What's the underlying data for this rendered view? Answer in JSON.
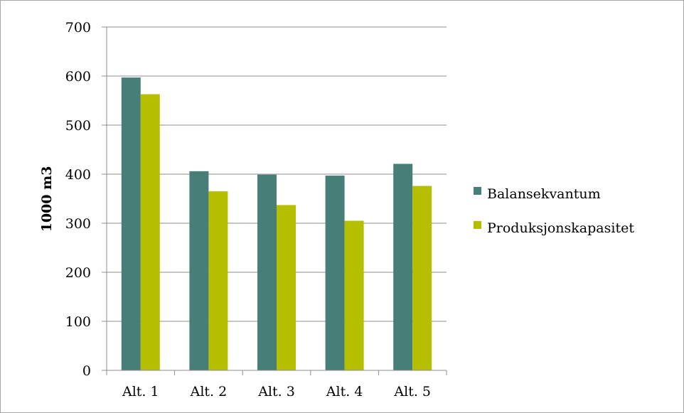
{
  "chart_data": {
    "type": "bar",
    "title": "",
    "xlabel": "",
    "ylabel": "1000 m3",
    "ylim": [
      0,
      700
    ],
    "yticks": [
      0,
      100,
      200,
      300,
      400,
      500,
      600,
      700
    ],
    "grid": true,
    "legend_position": "right",
    "categories": [
      "Alt. 1",
      "Alt. 2",
      "Alt. 3",
      "Alt. 4",
      "Alt. 5"
    ],
    "series": [
      {
        "name": "Balansekvantum",
        "color": "#477e78",
        "values": [
          597,
          406,
          399,
          397,
          421
        ]
      },
      {
        "name": "Produksjonskapasitet",
        "color": "#b5bf00",
        "values": [
          563,
          365,
          337,
          305,
          376
        ]
      }
    ]
  }
}
